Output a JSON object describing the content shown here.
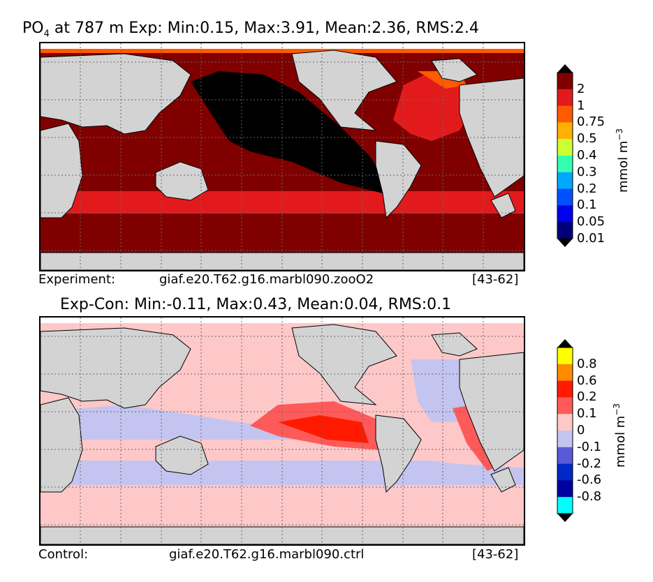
{
  "top": {
    "title_prefix": "PO",
    "title_sub": "4",
    "title_rest": " at 787 m Exp: Min:0.15, Max:3.91, Mean:2.36, RMS:2.4",
    "footer_label": "Experiment:",
    "footer_case": "giaf.e20.T62.g16.marbl090.zooO2",
    "footer_years": "[43-62]",
    "colorbar": {
      "unit": "mmol m",
      "unit_exp": "−3",
      "levels": [
        "2",
        "1",
        "0.75",
        "0.5",
        "0.4",
        "0.3",
        "0.2",
        "0.1",
        "0.05",
        "0.01"
      ],
      "colors": [
        "#800000",
        "#e31a1c",
        "#ff5a00",
        "#ffb000",
        "#ccff33",
        "#33ffb0",
        "#00a8ff",
        "#0050ff",
        "#0000ee",
        "#00007a"
      ],
      "over_color": "#000000",
      "under_color": "#000000"
    }
  },
  "bottom": {
    "title": "Exp-Con: Min:-0.11, Max:0.43, Mean:0.04, RMS:0.1",
    "footer_label": "Control:",
    "footer_case": "giaf.e20.T62.g16.marbl090.ctrl",
    "footer_years": "[43-62]",
    "colorbar": {
      "unit": "mmol m",
      "unit_exp": "−3",
      "levels": [
        "0.8",
        "0.6",
        "0.2",
        "0.1",
        "0",
        "-0.1",
        "-0.2",
        "-0.6",
        "-0.8"
      ],
      "colors": [
        "#ffff00",
        "#ff8c00",
        "#ff1a00",
        "#ff5a5a",
        "#ffc8c8",
        "#c4c4f0",
        "#5a5ad8",
        "#0028c8",
        "#0000a0",
        "#00ffff"
      ],
      "over_color": "#000000",
      "under_color": "#000000"
    }
  },
  "colors": {
    "land": "#d3d3d3",
    "ice": "#ffffff",
    "coast": "#000000",
    "grid": "#666666"
  }
}
